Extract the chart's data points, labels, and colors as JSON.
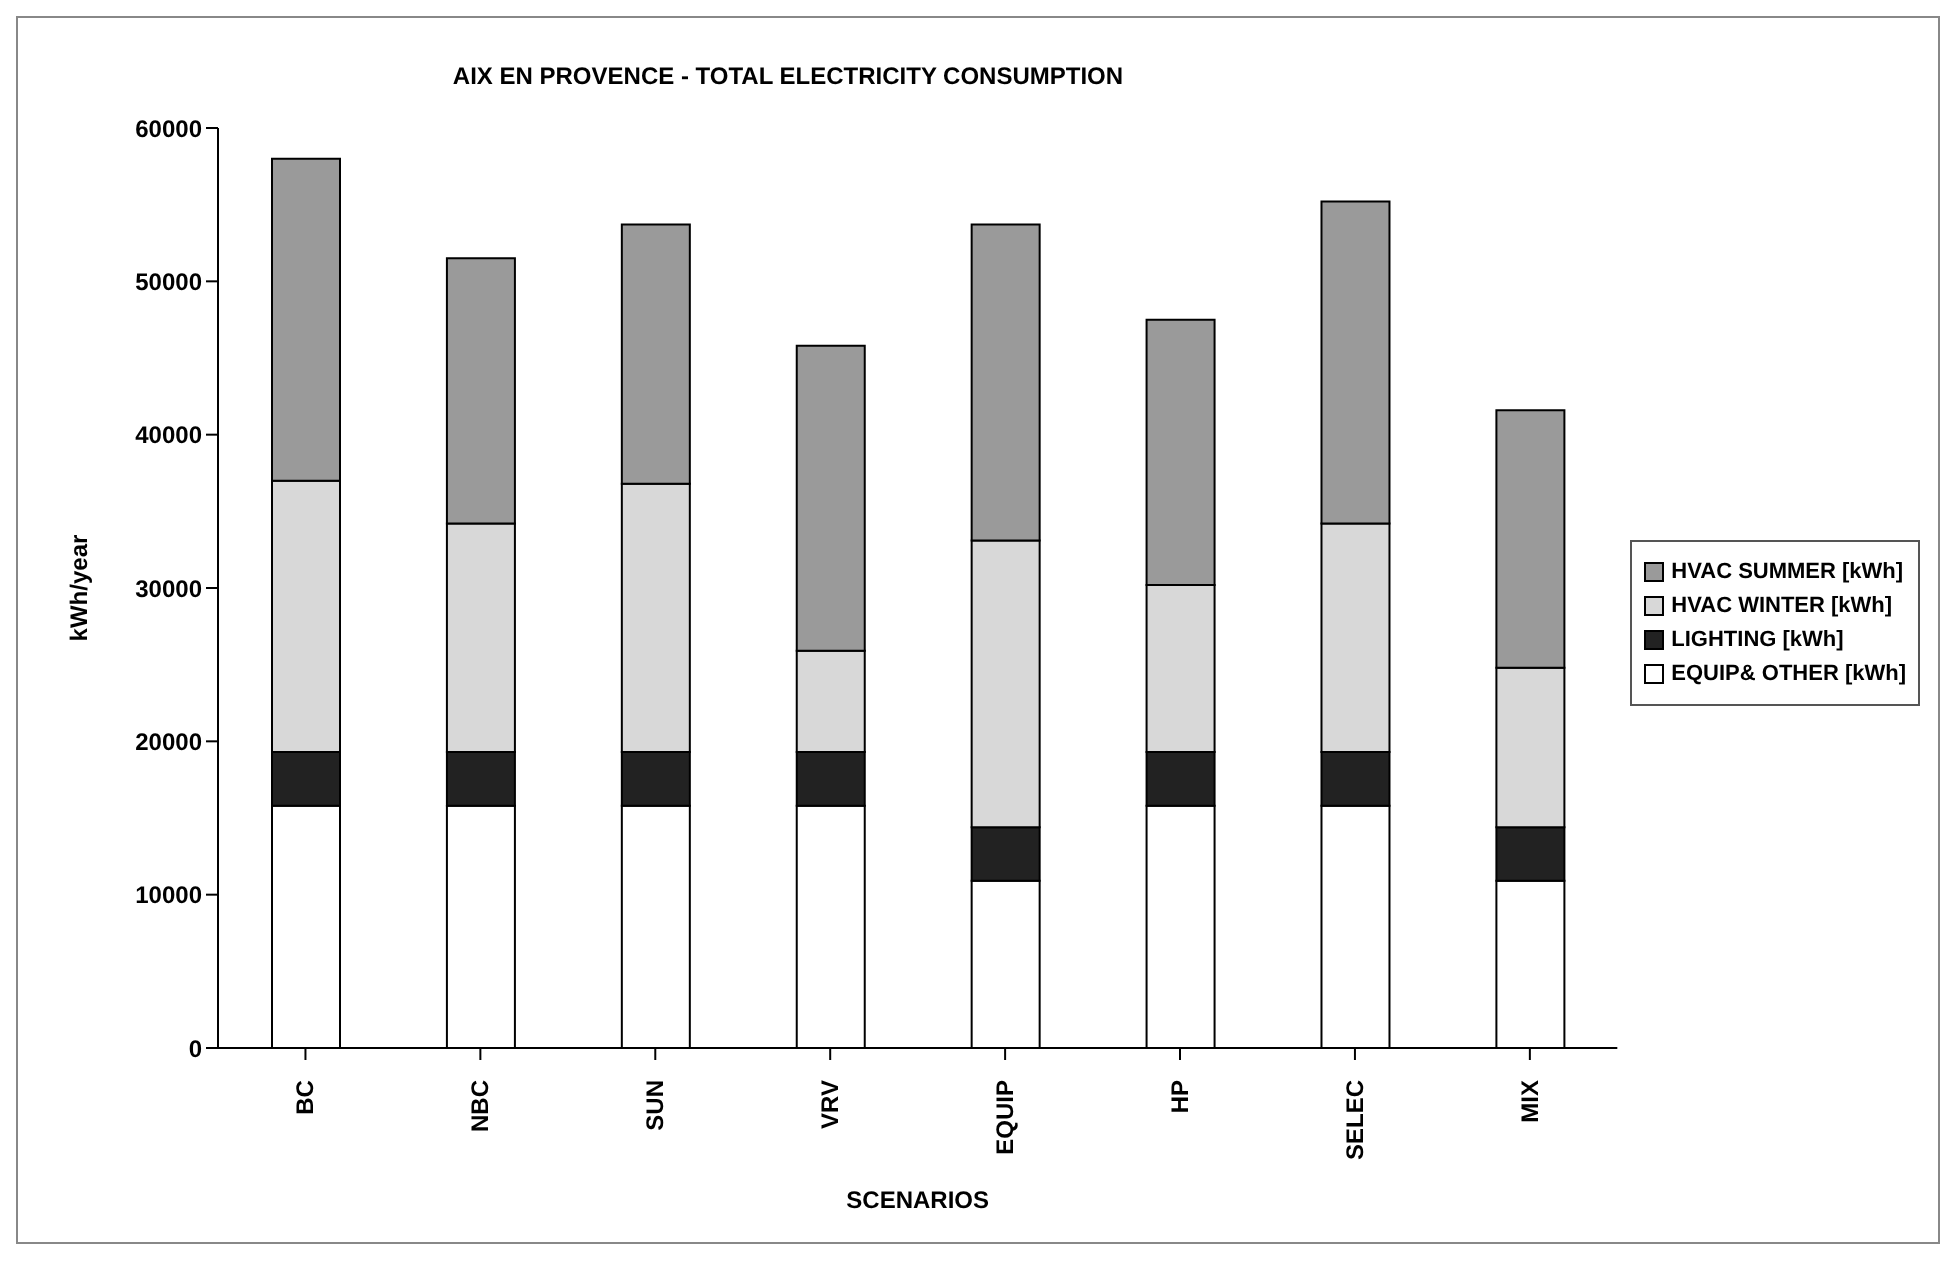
{
  "chart_data": {
    "type": "bar",
    "title": "AIX EN PROVENCE - TOTAL ELECTRICITY CONSUMPTION",
    "xlabel": "SCENARIOS",
    "ylabel": "kWh/year",
    "categories": [
      "BC",
      "NBC",
      "SUN",
      "VRV",
      "EQUIP",
      "HP",
      "SELEC",
      "MIX"
    ],
    "stacked": true,
    "ylim": [
      0,
      60000
    ],
    "yticks": [
      0,
      10000,
      20000,
      30000,
      40000,
      50000,
      60000
    ],
    "grid": false,
    "legend": "right",
    "series": [
      {
        "name": "EQUIP& OTHER [kWh]",
        "color": "#ffffff",
        "values": [
          15800,
          15800,
          15800,
          15800,
          10900,
          15800,
          15800,
          10900
        ]
      },
      {
        "name": "LIGHTING [kWh]",
        "color": "#222222",
        "values": [
          3500,
          3500,
          3500,
          3500,
          3500,
          3500,
          3500,
          3500
        ]
      },
      {
        "name": "HVAC WINTER [kWh]",
        "color": "#d8d8d8",
        "values": [
          17700,
          14900,
          17500,
          6600,
          18700,
          10900,
          14900,
          10400
        ]
      },
      {
        "name": "HVAC SUMMER [kWh]",
        "color": "#9a9a9a",
        "values": [
          21000,
          17300,
          16900,
          19900,
          20600,
          17300,
          21000,
          16800
        ]
      }
    ]
  }
}
